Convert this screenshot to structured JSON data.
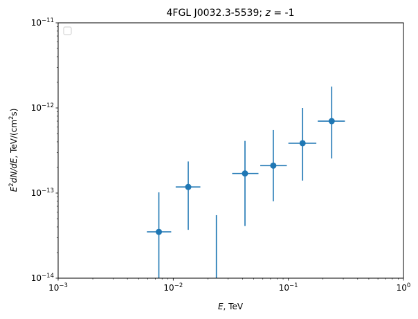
{
  "chart_data": {
    "type": "scatter",
    "title_main": "4FGL J0032.3-5539; ",
    "title_z": "z",
    "title_rest": " = -1",
    "xlabel": {
      "italic": "E",
      "rest": ", TeV"
    },
    "ylabel": {
      "e": "E",
      "exp2": "2",
      "dnde": "dN/dE",
      "rest": ", TeV/(cm",
      "close": "s)"
    },
    "x_scale": "log",
    "y_scale": "log",
    "xlim": [
      0.001,
      1
    ],
    "ylim": [
      1e-14,
      1e-11
    ],
    "x_ticks": [
      {
        "value": 0.001,
        "base": "10",
        "exp": "−3"
      },
      {
        "value": 0.01,
        "base": "10",
        "exp": "−2"
      },
      {
        "value": 0.1,
        "base": "10",
        "exp": "−1"
      },
      {
        "value": 1,
        "base": "10",
        "exp": "0"
      }
    ],
    "y_ticks": [
      {
        "value": 1e-14,
        "base": "10",
        "exp": "−14"
      },
      {
        "value": 1e-13,
        "base": "10",
        "exp": "−13"
      },
      {
        "value": 1e-12,
        "base": "10",
        "exp": "−12"
      },
      {
        "value": 1e-11,
        "base": "10",
        "exp": "−11"
      }
    ],
    "grid": false,
    "legend": {
      "location": "upper-left",
      "entries": []
    },
    "series": [
      {
        "marker": "circle",
        "color": "#1f77b4",
        "points": [
          {
            "x": 0.0075,
            "y": 3.5e-14,
            "x_lo": 0.0059,
            "x_hi": 0.0096,
            "y_lo": 1e-14,
            "y_hi": 1.02e-13
          },
          {
            "x": 0.0135,
            "y": 1.18e-13,
            "x_lo": 0.0105,
            "x_hi": 0.0172,
            "y_lo": 3.7e-14,
            "y_hi": 2.35e-13
          },
          {
            "x": 0.042,
            "y": 1.7e-13,
            "x_lo": 0.0325,
            "x_hi": 0.055,
            "y_lo": 4.1e-14,
            "y_hi": 4.1e-13
          },
          {
            "x": 0.074,
            "y": 2.1e-13,
            "x_lo": 0.057,
            "x_hi": 0.097,
            "y_lo": 8e-14,
            "y_hi": 5.5e-13
          },
          {
            "x": 0.133,
            "y": 3.85e-13,
            "x_lo": 0.1,
            "x_hi": 0.175,
            "y_lo": 1.4e-13,
            "y_hi": 1e-12
          },
          {
            "x": 0.238,
            "y": 7e-13,
            "x_lo": 0.18,
            "x_hi": 0.31,
            "y_lo": 2.55e-13,
            "y_hi": 1.78e-12
          }
        ]
      },
      {
        "marker": "none",
        "color": "#1f77b4",
        "upper_limits": [
          {
            "x": 0.0237,
            "y_lo": 1e-14,
            "y_hi": 5.5e-14
          }
        ]
      }
    ]
  }
}
